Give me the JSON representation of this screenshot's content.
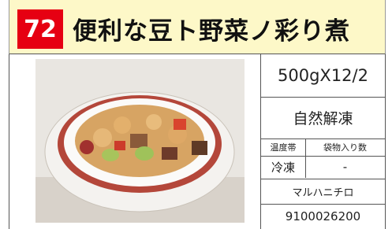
{
  "header": {
    "number": "72",
    "title": "便利な豆ト野菜ノ彩り煮"
  },
  "product": {
    "pack": "500gX12/2",
    "thaw": "自然解凍",
    "temperature_label": "温度帯",
    "bag_count_label": "袋物入り数",
    "temperature": "冷凍",
    "bag_count": "-",
    "maker": "マルハニチロ",
    "code": "9100026200"
  }
}
